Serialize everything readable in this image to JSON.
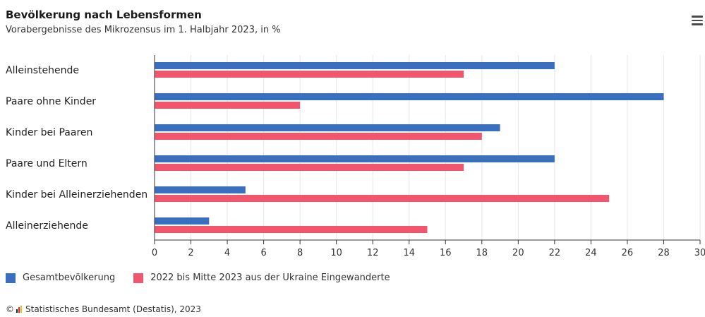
{
  "header": {
    "title": "Bevölkerung nach Lebensformen",
    "subtitle": "Vorabergebnisse des Mikrozensus im 1. Halbjahr 2023, in %",
    "menu_icon": "hamburger-menu-icon"
  },
  "colors": {
    "series_1": "#3a6ebf",
    "series_2": "#f0566e",
    "grid": "#e6e6e6",
    "axis": "#333333"
  },
  "chart_data": {
    "type": "bar",
    "orientation": "horizontal",
    "categories": [
      "Alleinstehende",
      "Paare ohne Kinder",
      "Kinder bei Paaren",
      "Paare und Eltern",
      "Kinder bei Alleinerziehenden",
      "Alleinerziehende"
    ],
    "series": [
      {
        "name": "Gesamtbevölkerung",
        "values": [
          22,
          28,
          19,
          22,
          5,
          3
        ]
      },
      {
        "name": "2022 bis Mitte 2023 aus der Ukraine Eingewanderte",
        "values": [
          17,
          8,
          18,
          17,
          25,
          15
        ]
      }
    ],
    "xlim": [
      0,
      30
    ],
    "xticks": [
      0,
      2,
      4,
      6,
      8,
      10,
      12,
      14,
      16,
      18,
      20,
      22,
      24,
      26,
      28,
      30
    ],
    "grid": true,
    "legend_position": "bottom-left"
  },
  "legend": {
    "items": [
      {
        "label": "Gesamtbevölkerung"
      },
      {
        "label": "2022 bis Mitte 2023 aus der Ukraine Eingewanderte"
      }
    ]
  },
  "footer": {
    "copyright_symbol": "©",
    "source": "Statistisches Bundesamt (Destatis), 2023",
    "logo_icon": "destatis-logo-icon"
  }
}
